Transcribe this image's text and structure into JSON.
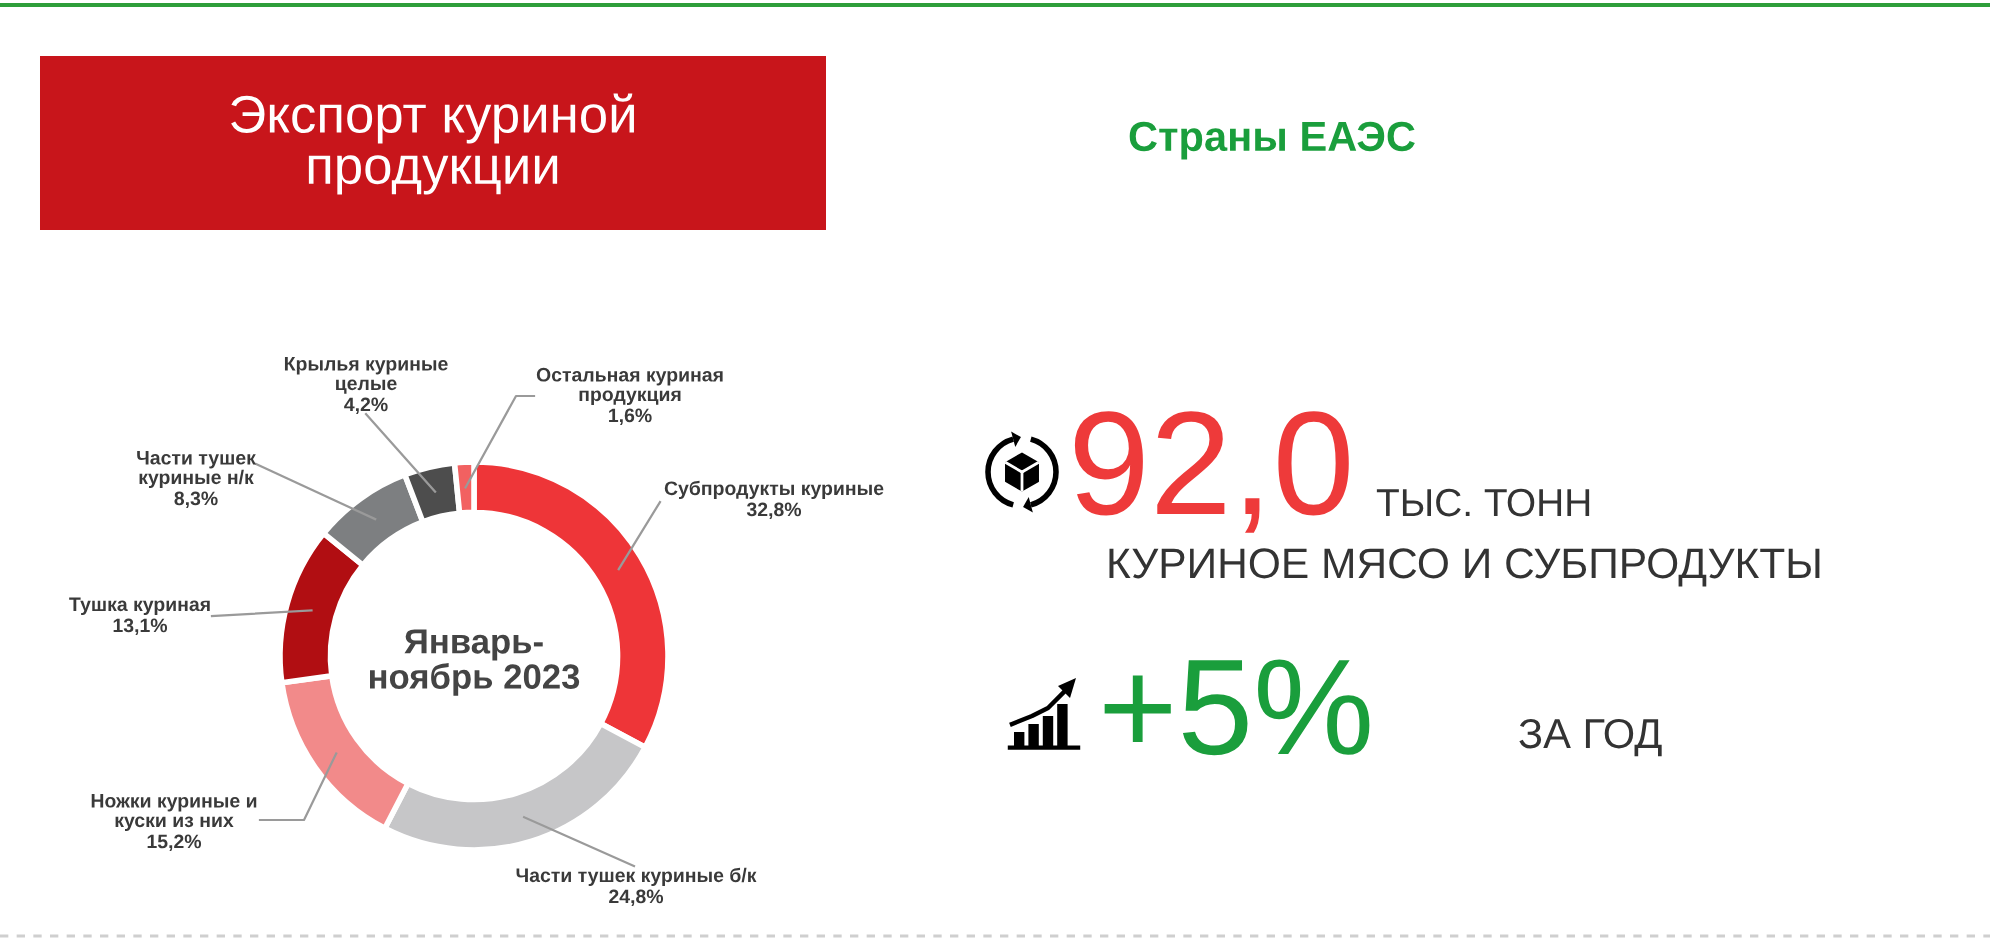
{
  "chart_data": {
    "type": "donut",
    "title": "Экспорт куриной\nпродукции",
    "subtitle": "Страны ЕАЭС",
    "categories": [
      "Субпродукты куриные",
      "Части тушек куриные б/к",
      "Ножки куриные и\nкуски из них",
      "Тушка куриная",
      "Части тушек\nкуриные н/к",
      "Крылья куриные\nцелые",
      "Остальная куриная\nпродукция"
    ],
    "values": [
      32.8,
      24.8,
      15.2,
      13.1,
      8.3,
      4.2,
      1.6
    ],
    "colors": [
      "#ee3538",
      "#c6c6c8",
      "#f28a8a",
      "#b10e12",
      "#7d7f81",
      "#4d4d4d",
      "#f26161"
    ],
    "value_labels": [
      "32,8%",
      "24,8%",
      "15,2%",
      "13,1%",
      "8,3%",
      "4,2%",
      "1,6%"
    ],
    "annotations": [
      "Январь-\nноябрь 2023",
      "92,0",
      "ТЫС. ТОНН",
      "КУРИНОЕ МЯСО И СУБПРОДУКТЫ",
      "+5%",
      "ЗА ГОД"
    ]
  }
}
